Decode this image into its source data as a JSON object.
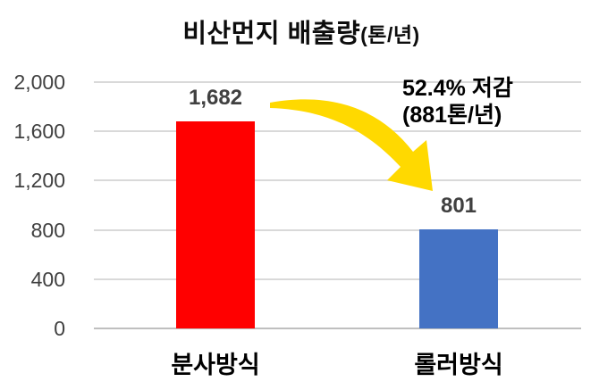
{
  "page": {
    "background": "#FFFFFF"
  },
  "chart_data": {
    "type": "bar",
    "title": "비산먼지 배출량",
    "title_unit": "(톤/년)",
    "categories": [
      "분사방식",
      "롤러방식"
    ],
    "values": [
      1682,
      801
    ],
    "value_labels": [
      "1,682",
      "801"
    ],
    "bar_colors": [
      "#FF0000",
      "#4472C4"
    ],
    "xlabel": "",
    "ylabel": "",
    "ylim": [
      0,
      2000
    ],
    "yticks": [
      0,
      400,
      800,
      1200,
      1600,
      2000
    ],
    "ytick_labels": [
      "0",
      "400",
      "800",
      "1,200",
      "1,600",
      "2,000"
    ],
    "grid": true,
    "gridline_color": "#D9D9D9",
    "baseline_color": "#BFBFBF",
    "tick_label_color": "#404040",
    "value_label_color": "#404040",
    "legend": "none",
    "annotation": {
      "line1": "52.4% 저감",
      "line2": "(881톤/년)",
      "text_color": "#000000",
      "arrow_color": "#FFD900",
      "arrow_meaning": "reduction-from-red-bar-to-blue-bar"
    }
  }
}
